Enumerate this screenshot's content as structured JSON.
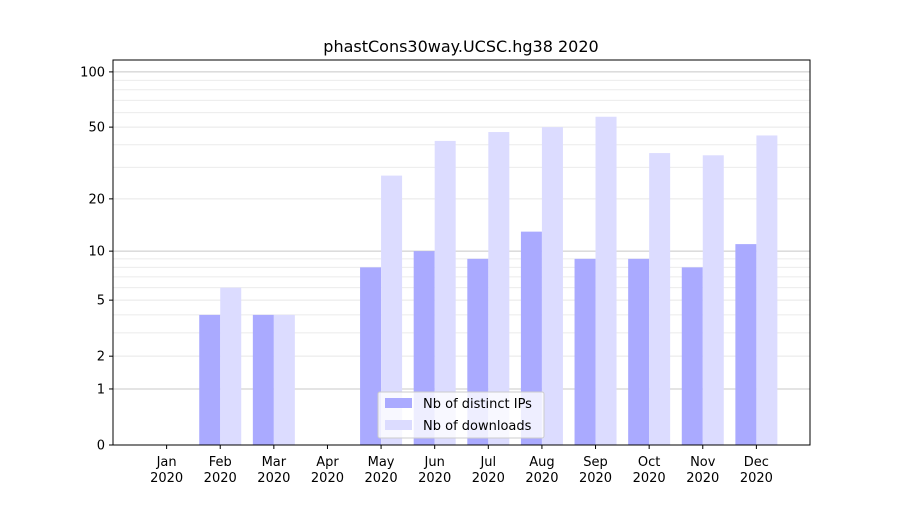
{
  "chart_data": {
    "type": "bar",
    "title": "phastCons30way.UCSC.hg38 2020",
    "xlabel": "",
    "ylabel": "",
    "yscale": "log(1+y)",
    "ylim": [
      0,
      116
    ],
    "yticks": [
      0,
      1,
      2,
      5,
      10,
      20,
      50,
      100
    ],
    "ytick_labels": [
      "0",
      "1",
      "2",
      "5",
      "10",
      "20",
      "50",
      "100"
    ],
    "grid": true,
    "legend_placement": "bottom-center",
    "categories": [
      "Jan\n2020",
      "Feb\n2020",
      "Mar\n2020",
      "Apr\n2020",
      "May\n2020",
      "Jun\n2020",
      "Jul\n2020",
      "Aug\n2020",
      "Sep\n2020",
      "Oct\n2020",
      "Nov\n2020",
      "Dec\n2020"
    ],
    "series": [
      {
        "name": "Nb of distinct IPs",
        "color": "#aaaaff",
        "values": [
          0,
          4,
          4,
          0,
          8,
          10,
          9,
          13,
          9,
          9,
          8,
          11
        ]
      },
      {
        "name": "Nb of downloads",
        "color": "#dcdcff",
        "values": [
          0,
          6,
          4,
          0,
          27,
          42,
          47,
          50,
          57,
          36,
          35,
          45
        ]
      }
    ]
  }
}
